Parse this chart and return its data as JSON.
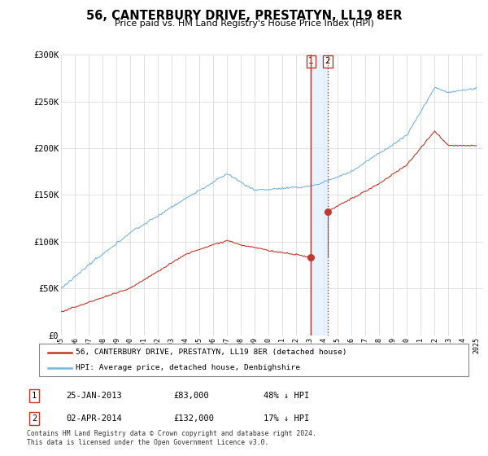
{
  "title": "56, CANTERBURY DRIVE, PRESTATYN, LL19 8ER",
  "subtitle": "Price paid vs. HM Land Registry's House Price Index (HPI)",
  "hpi_color": "#7ab4d8",
  "price_color": "#c0392b",
  "vline_solid_color": "#c0392b",
  "vline_dashed_color": "#c0392b",
  "vband_color": "#ddeeff",
  "annotation_box_color": "#c0392b",
  "annotation_fill": "white",
  "ylim": [
    0,
    300000
  ],
  "yticks": [
    0,
    50000,
    100000,
    150000,
    200000,
    250000,
    300000
  ],
  "ytick_labels": [
    "£0",
    "£50K",
    "£100K",
    "£150K",
    "£200K",
    "£250K",
    "£300K"
  ],
  "legend_label_price": "56, CANTERBURY DRIVE, PRESTATYN, LL19 8ER (detached house)",
  "legend_label_hpi": "HPI: Average price, detached house, Denbighshire",
  "transaction1_date": "25-JAN-2013",
  "transaction1_year": 2013.07,
  "transaction1_price_val": 83000,
  "transaction1_price": "£83,000",
  "transaction1_note": "48% ↓ HPI",
  "transaction2_date": "02-APR-2014",
  "transaction2_year": 2014.27,
  "transaction2_price_val": 132000,
  "transaction2_price": "£132,000",
  "transaction2_note": "17% ↓ HPI",
  "footnote": "Contains HM Land Registry data © Crown copyright and database right 2024.\nThis data is licensed under the Open Government Licence v3.0.",
  "xstart_year": 1995,
  "xend_year": 2025
}
